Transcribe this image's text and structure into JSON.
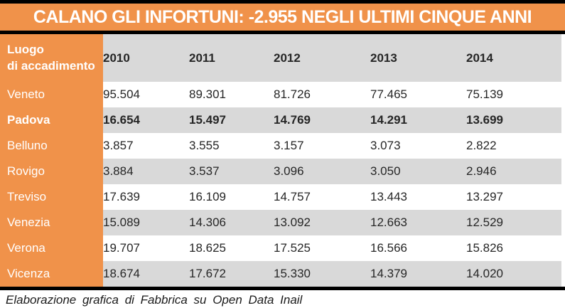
{
  "title": "CALANO GLI INFORTUNI: -2.955 NEGLI ULTIMI CINQUE ANNI",
  "table": {
    "corner_label_line1": "Luogo",
    "corner_label_line2": "di accadimento",
    "years": [
      "2010",
      "2011",
      "2012",
      "2013",
      "2014"
    ],
    "rows": [
      {
        "label": "Veneto",
        "bold": false,
        "values": [
          "95.504",
          "89.301",
          "81.726",
          "77.465",
          "75.139"
        ]
      },
      {
        "label": "Padova",
        "bold": true,
        "values": [
          "16.654",
          "15.497",
          "14.769",
          "14.291",
          "13.699"
        ]
      },
      {
        "label": "Belluno",
        "bold": false,
        "values": [
          "3.857",
          "3.555",
          "3.157",
          "3.073",
          "2.822"
        ]
      },
      {
        "label": "Rovigo",
        "bold": false,
        "values": [
          "3.884",
          "3.537",
          "3.096",
          "3.050",
          "2.946"
        ]
      },
      {
        "label": "Treviso",
        "bold": false,
        "values": [
          "17.639",
          "16.109",
          "14.757",
          "13.443",
          "13.297"
        ]
      },
      {
        "label": "Venezia",
        "bold": false,
        "values": [
          "15.089",
          "14.306",
          "13.092",
          "12.663",
          "12.529"
        ]
      },
      {
        "label": "Verona",
        "bold": false,
        "values": [
          "19.707",
          "18.625",
          "17.525",
          "16.566",
          "15.826"
        ]
      },
      {
        "label": "Vicenza",
        "bold": false,
        "values": [
          "18.674",
          "17.672",
          "15.330",
          "14.379",
          "14.020"
        ]
      }
    ]
  },
  "footer": {
    "caption": "Elaborazione grafica di Fabbrica su Open Data Inail"
  },
  "colors": {
    "accent_orange": "#F0924A",
    "row_gray": "#D9D9D9",
    "divider_black": "#000000",
    "text_dark": "#262626",
    "title_text": "#FFFFFF"
  },
  "chart_data": {
    "type": "table",
    "title": "CALANO GLI INFORTUNI: -2.955 NEGLI ULTIMI CINQUE ANNI",
    "row_header": "Luogo di accadimento",
    "columns": [
      "2010",
      "2011",
      "2012",
      "2013",
      "2014"
    ],
    "rows": [
      {
        "label": "Veneto",
        "values": [
          95504,
          89301,
          81726,
          77465,
          75139
        ]
      },
      {
        "label": "Padova",
        "values": [
          16654,
          15497,
          14769,
          14291,
          13699
        ]
      },
      {
        "label": "Belluno",
        "values": [
          3857,
          3555,
          3157,
          3073,
          2822
        ]
      },
      {
        "label": "Rovigo",
        "values": [
          3884,
          3537,
          3096,
          3050,
          2946
        ]
      },
      {
        "label": "Treviso",
        "values": [
          17639,
          16109,
          14757,
          13443,
          13297
        ]
      },
      {
        "label": "Venezia",
        "values": [
          15089,
          14306,
          13092,
          12663,
          12529
        ]
      },
      {
        "label": "Verona",
        "values": [
          19707,
          18625,
          17525,
          16566,
          15826
        ]
      },
      {
        "label": "Vicenza",
        "values": [
          18674,
          17672,
          15330,
          14379,
          14020
        ]
      }
    ],
    "caption": "Elaborazione grafica di Fabbrica su Open Data Inail",
    "notes": "Highlighted bold row: Padova. Alternating white/gray rows, orange label column."
  }
}
